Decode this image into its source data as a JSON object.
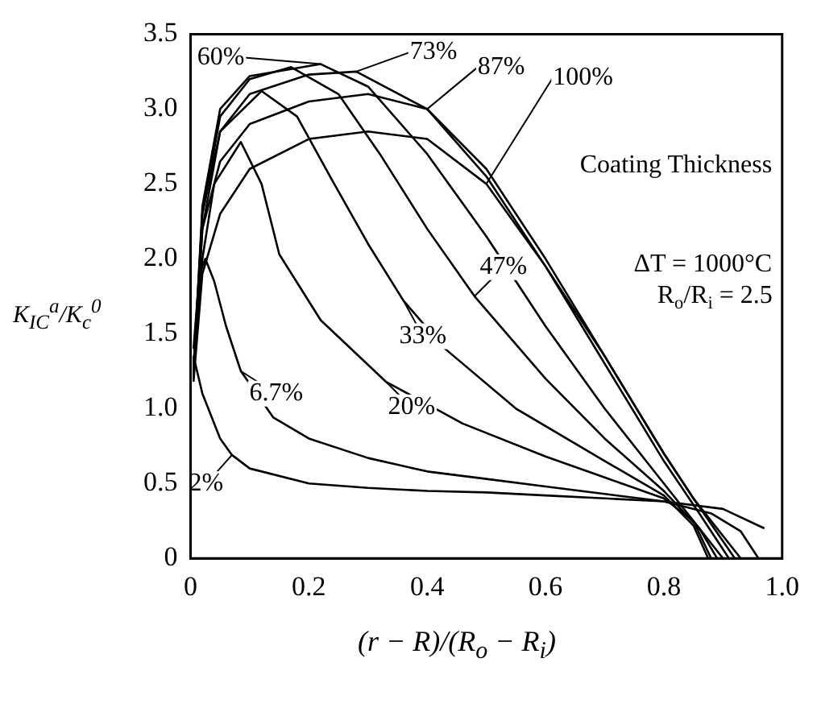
{
  "chart_data": {
    "type": "line",
    "xlabel": "(r − R)/(R$_{o}$ − R$_{i}$)",
    "ylabel": "K$_{IC}$$^{a}$/K$_{c}$$^{0}$",
    "series": [
      {
        "color": "#000000",
        "x": [
          0.005,
          0.02,
          0.05,
          0.07,
          0.1,
          0.2,
          0.3,
          0.4,
          0.5,
          0.6,
          0.7,
          0.8,
          0.9,
          0.97
        ],
        "values": [
          1.35,
          1.1,
          0.8,
          0.69,
          0.6,
          0.5,
          0.47,
          0.45,
          0.44,
          0.42,
          0.4,
          0.38,
          0.33,
          0.2
        ]
      },
      {
        "color": "#000000",
        "x": [
          0.005,
          0.015,
          0.025,
          0.04,
          0.06,
          0.085,
          0.14,
          0.2,
          0.3,
          0.4,
          0.5,
          0.6,
          0.7,
          0.8,
          0.88,
          0.93,
          0.96
        ],
        "values": [
          1.4,
          1.9,
          2.0,
          1.85,
          1.55,
          1.25,
          0.94,
          0.8,
          0.67,
          0.58,
          0.53,
          0.48,
          0.43,
          0.38,
          0.3,
          0.18,
          0
        ]
      },
      {
        "color": "#000000",
        "x": [
          0.005,
          0.02,
          0.04,
          0.085,
          0.12,
          0.15,
          0.22,
          0.33,
          0.46,
          0.6,
          0.7,
          0.8,
          0.85,
          0.88
        ],
        "values": [
          1.3,
          2.0,
          2.5,
          2.78,
          2.5,
          2.03,
          1.59,
          1.18,
          0.9,
          0.68,
          0.54,
          0.4,
          0.25,
          0
        ]
      },
      {
        "color": "#000000",
        "x": [
          0.005,
          0.02,
          0.05,
          0.12,
          0.18,
          0.24,
          0.3,
          0.36,
          0.43,
          0.55,
          0.7,
          0.8,
          0.85,
          0.875
        ],
        "values": [
          1.28,
          2.2,
          2.85,
          3.12,
          2.95,
          2.52,
          2.1,
          1.72,
          1.4,
          1.0,
          0.65,
          0.42,
          0.22,
          0
        ]
      },
      {
        "color": "#000000",
        "x": [
          0.005,
          0.02,
          0.05,
          0.1,
          0.17,
          0.25,
          0.32,
          0.4,
          0.48,
          0.6,
          0.7,
          0.8,
          0.86,
          0.89
        ],
        "values": [
          1.26,
          2.3,
          2.95,
          3.2,
          3.28,
          3.1,
          2.7,
          2.2,
          1.75,
          1.2,
          0.8,
          0.45,
          0.2,
          0
        ]
      },
      {
        "color": "#000000",
        "x": [
          0.005,
          0.02,
          0.05,
          0.1,
          0.22,
          0.3,
          0.4,
          0.5,
          0.6,
          0.7,
          0.8,
          0.86,
          0.9
        ],
        "values": [
          1.24,
          2.35,
          3.0,
          3.22,
          3.3,
          3.15,
          2.7,
          2.15,
          1.55,
          1.0,
          0.5,
          0.2,
          0
        ]
      },
      {
        "color": "#000000",
        "x": [
          0.005,
          0.02,
          0.05,
          0.1,
          0.2,
          0.28,
          0.4,
          0.5,
          0.6,
          0.7,
          0.8,
          0.86,
          0.91
        ],
        "values": [
          1.22,
          2.3,
          2.85,
          3.1,
          3.23,
          3.25,
          3.0,
          2.55,
          1.95,
          1.3,
          0.65,
          0.3,
          0
        ]
      },
      {
        "color": "#000000",
        "x": [
          0.005,
          0.02,
          0.05,
          0.1,
          0.2,
          0.3,
          0.4,
          0.5,
          0.6,
          0.7,
          0.8,
          0.85,
          0.92
        ],
        "values": [
          1.2,
          2.2,
          2.65,
          2.9,
          3.05,
          3.1,
          3.0,
          2.6,
          2.0,
          1.35,
          0.7,
          0.4,
          0
        ]
      },
      {
        "color": "#000000",
        "x": [
          0.005,
          0.02,
          0.05,
          0.1,
          0.2,
          0.3,
          0.4,
          0.5,
          0.6,
          0.7,
          0.8,
          0.85,
          0.93
        ],
        "values": [
          1.18,
          1.9,
          2.3,
          2.6,
          2.8,
          2.85,
          2.8,
          2.5,
          1.95,
          1.35,
          0.7,
          0.4,
          0
        ]
      }
    ],
    "annotations": [
      {
        "text": "2%",
        "x": 0.07,
        "y": 0.69
      },
      {
        "text": "6.7%",
        "x": 0.085,
        "y": 1.25
      },
      {
        "text": "20%",
        "x": 0.33,
        "y": 1.18
      },
      {
        "text": "33%",
        "x": 0.36,
        "y": 1.72
      },
      {
        "text": "47%",
        "x": 0.48,
        "y": 1.75
      },
      {
        "text": "60%",
        "x": 0.22,
        "y": 3.3
      },
      {
        "text": "73%",
        "x": 0.28,
        "y": 3.25
      },
      {
        "text": "87%",
        "x": 0.4,
        "y": 3.0
      },
      {
        "text": "100%",
        "x": 0.5,
        "y": 2.5
      },
      "Coating Thickness",
      "ΔT = 1000°C",
      "R$_{o}$/R$_{i}$ = 2.5"
    ],
    "xlim": [
      0,
      1
    ],
    "xticks": [
      0,
      0.2,
      0.4,
      0.6,
      0.8,
      {
        "value": 1,
        "label": "1.0"
      }
    ],
    "ylim": [
      0,
      3.5
    ],
    "yticks": [
      0,
      0.5,
      {
        "value": 1,
        "label": "1.0"
      },
      1.5,
      {
        "value": 2,
        "label": "2.0"
      },
      2.5,
      {
        "value": 3,
        "label": "3.0"
      },
      3.5
    ],
    "grid": false,
    "legend": false,
    "marker": "none",
    "line_style": "solid"
  }
}
